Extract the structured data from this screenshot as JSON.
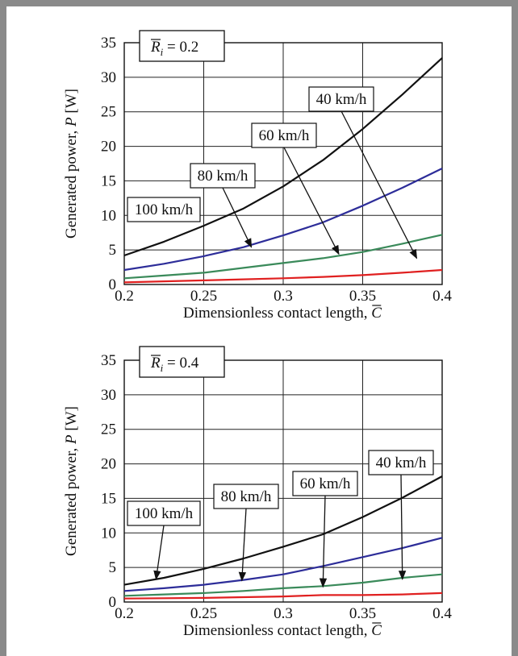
{
  "chart_data": [
    {
      "type": "line",
      "badge": {
        "symbol": "R",
        "subscript": "i",
        "value": "= 0.2"
      },
      "xlabel": "Dimensionless contact length,",
      "xlabel_symbol": "C",
      "ylabel": "Generated power,",
      "ylabel_symbol": "P",
      "ylabel_unit": "[W]",
      "xlim": [
        0.2,
        0.4
      ],
      "ylim": [
        0,
        35
      ],
      "xticks": [
        "0.2",
        "0.25",
        "0.3",
        "0.35",
        "0.4"
      ],
      "yticks": [
        "0",
        "5",
        "10",
        "15",
        "20",
        "25",
        "30",
        "35"
      ],
      "grid": true,
      "series": [
        {
          "name": "40 km/h",
          "color": "#111111",
          "x": [
            0.2,
            0.225,
            0.25,
            0.275,
            0.3,
            0.325,
            0.35,
            0.375,
            0.4
          ],
          "y": [
            4.2,
            6.2,
            8.5,
            11.0,
            14.2,
            18.0,
            22.5,
            27.5,
            32.8
          ],
          "label_anchor": [
            0.384,
            3.8
          ]
        },
        {
          "name": "60 km/h",
          "color": "#2d2d99",
          "x": [
            0.2,
            0.225,
            0.25,
            0.275,
            0.3,
            0.325,
            0.35,
            0.375,
            0.4
          ],
          "y": [
            2.1,
            3.0,
            4.1,
            5.4,
            7.1,
            9.0,
            11.4,
            14.0,
            16.8
          ],
          "label_anchor": [
            0.335,
            4.4
          ]
        },
        {
          "name": "80 km/h",
          "color": "#3a8a5a",
          "x": [
            0.2,
            0.225,
            0.25,
            0.275,
            0.3,
            0.325,
            0.35,
            0.375,
            0.4
          ],
          "y": [
            0.9,
            1.3,
            1.7,
            2.4,
            3.1,
            3.8,
            4.7,
            5.9,
            7.2
          ],
          "label_anchor": [
            0.28,
            5.4
          ]
        },
        {
          "name": "100 km/h",
          "color": "#e02020",
          "x": [
            0.2,
            0.225,
            0.25,
            0.275,
            0.3,
            0.325,
            0.35,
            0.375,
            0.4
          ],
          "y": [
            0.3,
            0.45,
            0.6,
            0.75,
            0.9,
            1.1,
            1.35,
            1.7,
            2.1
          ],
          "label_anchor": null
        }
      ]
    },
    {
      "type": "line",
      "badge": {
        "symbol": "R",
        "subscript": "i",
        "value": "= 0.4"
      },
      "xlabel": "Dimensionless contact length,",
      "xlabel_symbol": "C",
      "ylabel": "Generated power,",
      "ylabel_symbol": "P",
      "ylabel_unit": "[W]",
      "xlim": [
        0.2,
        0.4
      ],
      "ylim": [
        0,
        35
      ],
      "xticks": [
        "0.2",
        "0.25",
        "0.3",
        "0.35",
        "0.4"
      ],
      "yticks": [
        "0",
        "5",
        "10",
        "15",
        "20",
        "25",
        "30",
        "35"
      ],
      "grid": true,
      "series": [
        {
          "name": "40 km/h",
          "color": "#111111",
          "x": [
            0.2,
            0.225,
            0.25,
            0.275,
            0.3,
            0.325,
            0.35,
            0.375,
            0.4
          ],
          "y": [
            2.5,
            3.5,
            4.8,
            6.3,
            8.0,
            9.8,
            12.3,
            15.1,
            18.2
          ],
          "label_anchor": [
            0.375,
            3.3
          ]
        },
        {
          "name": "60 km/h",
          "color": "#2d2d99",
          "x": [
            0.2,
            0.225,
            0.25,
            0.275,
            0.3,
            0.325,
            0.35,
            0.375,
            0.4
          ],
          "y": [
            1.6,
            2.0,
            2.5,
            3.2,
            4.0,
            5.2,
            6.5,
            7.8,
            9.3
          ],
          "label_anchor": [
            0.325,
            2.2
          ]
        },
        {
          "name": "80 km/h",
          "color": "#3a8a5a",
          "x": [
            0.2,
            0.225,
            0.25,
            0.275,
            0.3,
            0.325,
            0.35,
            0.375,
            0.4
          ],
          "y": [
            0.9,
            1.1,
            1.3,
            1.6,
            2.0,
            2.3,
            2.8,
            3.5,
            4.0
          ],
          "label_anchor": [
            0.274,
            3.1
          ]
        },
        {
          "name": "100 km/h",
          "color": "#e02020",
          "x": [
            0.2,
            0.225,
            0.25,
            0.275,
            0.3,
            0.325,
            0.35,
            0.375,
            0.4
          ],
          "y": [
            0.5,
            0.55,
            0.6,
            0.7,
            0.8,
            1.0,
            1.0,
            1.1,
            1.3
          ],
          "label_anchor": [
            0.22,
            3.3
          ]
        }
      ]
    }
  ]
}
